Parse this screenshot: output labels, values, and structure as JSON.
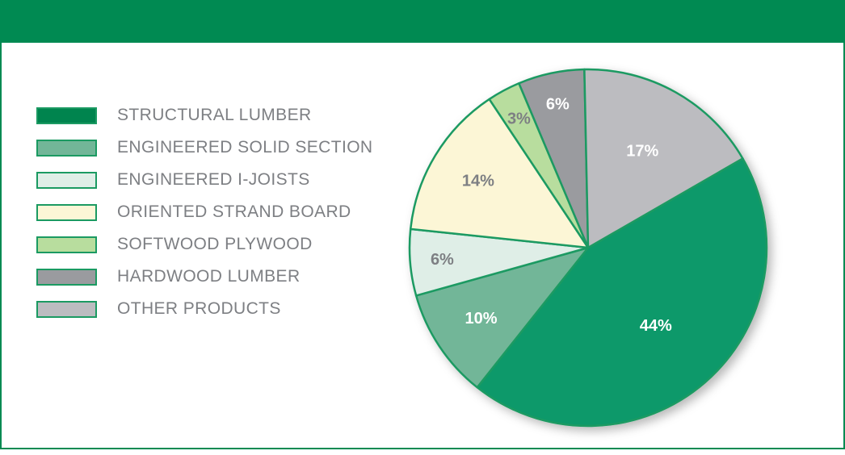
{
  "colors": {
    "header": "#008a52",
    "border": "#008a52",
    "slice_outline": "#1b9a62",
    "label_light": "#ffffff",
    "label_dark": "#7d7f83"
  },
  "legend": {
    "items": [
      {
        "label": "STRUCTURAL LUMBER",
        "color": "#00844e"
      },
      {
        "label": "ENGINEERED SOLID SECTION",
        "color": "#72b698"
      },
      {
        "label": "ENGINEERED I-JOISTS",
        "color": "#dfeee7"
      },
      {
        "label": "ORIENTED STRAND BOARD",
        "color": "#fcf6d6"
      },
      {
        "label": "SOFTWOOD PLYWOOD",
        "color": "#b8dd9e"
      },
      {
        "label": "HARDWOOD LUMBER",
        "color": "#9a9b9f"
      },
      {
        "label": "OTHER PRODUCTS",
        "color": "#bcbcc0"
      }
    ]
  },
  "chart_data": {
    "type": "pie",
    "title": "",
    "categories": [
      "STRUCTURAL LUMBER",
      "ENGINEERED SOLID SECTION",
      "ENGINEERED I-JOISTS",
      "ORIENTED STRAND BOARD",
      "SOFTWOOD PLYWOOD",
      "HARDWOOD LUMBER",
      "OTHER PRODUCTS"
    ],
    "values": [
      44,
      10,
      6,
      14,
      3,
      6,
      17
    ],
    "data_labels": [
      "44%",
      "10%",
      "6%",
      "14%",
      "3%",
      "6%",
      "17%"
    ],
    "slice_colors": [
      "#11996a",
      "#72b698",
      "#dfeee7",
      "#fcf6d6",
      "#b8dd9e",
      "#9a9b9f",
      "#bcbcc0"
    ],
    "label_colors": [
      "#ffffff",
      "#ffffff",
      "#7d7f83",
      "#7d7f83",
      "#7d7f83",
      "#ffffff",
      "#ffffff"
    ],
    "legend_position": "left",
    "start_angle_deg": -30
  }
}
